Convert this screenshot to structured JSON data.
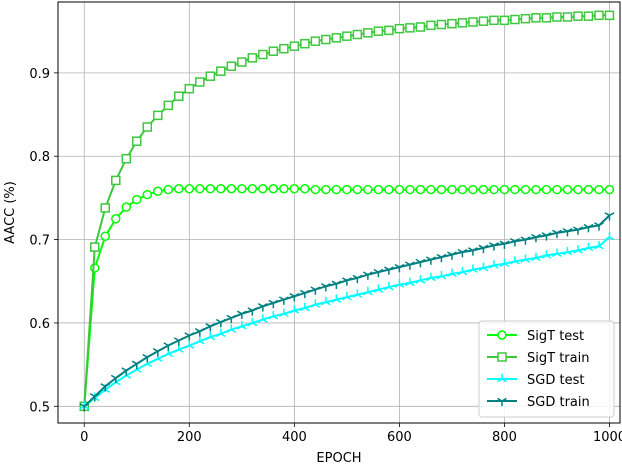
{
  "chart_data": {
    "type": "line",
    "xlabel": "EPOCH",
    "ylabel": "AACC (%)",
    "xlim": [
      -50,
      1020
    ],
    "ylim": [
      0.48,
      0.985
    ],
    "xticks": [
      0,
      200,
      400,
      600,
      800,
      1000
    ],
    "yticks": [
      0.5,
      0.6,
      0.7,
      0.8,
      0.9
    ],
    "grid": true,
    "legend_position": "lower-right",
    "series": [
      {
        "name": "SigT test",
        "color": "#00ff00",
        "marker": "circle",
        "x": [
          0,
          20,
          40,
          60,
          80,
          100,
          120,
          140,
          160,
          180,
          200,
          220,
          240,
          260,
          280,
          300,
          320,
          340,
          360,
          380,
          400,
          420,
          440,
          460,
          480,
          500,
          520,
          540,
          560,
          580,
          600,
          620,
          640,
          660,
          680,
          700,
          720,
          740,
          760,
          780,
          800,
          820,
          840,
          860,
          880,
          900,
          920,
          940,
          960,
          980,
          1000
        ],
        "y": [
          0.5,
          0.666,
          0.704,
          0.725,
          0.739,
          0.748,
          0.754,
          0.758,
          0.76,
          0.761,
          0.761,
          0.761,
          0.761,
          0.761,
          0.761,
          0.761,
          0.761,
          0.761,
          0.761,
          0.761,
          0.761,
          0.761,
          0.76,
          0.76,
          0.76,
          0.76,
          0.76,
          0.76,
          0.76,
          0.76,
          0.76,
          0.76,
          0.76,
          0.76,
          0.76,
          0.76,
          0.76,
          0.76,
          0.76,
          0.76,
          0.76,
          0.76,
          0.76,
          0.76,
          0.76,
          0.76,
          0.76,
          0.76,
          0.76,
          0.76,
          0.76
        ]
      },
      {
        "name": "SigT train",
        "color": "#3cc83c",
        "marker": "square",
        "x": [
          0,
          20,
          40,
          60,
          80,
          100,
          120,
          140,
          160,
          180,
          200,
          220,
          240,
          260,
          280,
          300,
          320,
          340,
          360,
          380,
          400,
          420,
          440,
          460,
          480,
          500,
          520,
          540,
          560,
          580,
          600,
          620,
          640,
          660,
          680,
          700,
          720,
          740,
          760,
          780,
          800,
          820,
          840,
          860,
          880,
          900,
          920,
          940,
          960,
          980,
          1000
        ],
        "y": [
          0.5,
          0.691,
          0.738,
          0.771,
          0.797,
          0.818,
          0.835,
          0.849,
          0.861,
          0.872,
          0.881,
          0.889,
          0.896,
          0.902,
          0.908,
          0.913,
          0.918,
          0.922,
          0.926,
          0.929,
          0.932,
          0.935,
          0.938,
          0.94,
          0.942,
          0.944,
          0.946,
          0.948,
          0.95,
          0.951,
          0.953,
          0.954,
          0.955,
          0.957,
          0.958,
          0.959,
          0.96,
          0.961,
          0.962,
          0.963,
          0.963,
          0.964,
          0.965,
          0.966,
          0.966,
          0.967,
          0.967,
          0.968,
          0.968,
          0.969,
          0.969
        ]
      },
      {
        "name": "SGD test",
        "color": "#00ffff",
        "marker": "tri_up",
        "x": [
          0,
          20,
          40,
          60,
          80,
          100,
          120,
          140,
          160,
          180,
          200,
          220,
          240,
          260,
          280,
          300,
          320,
          340,
          360,
          380,
          400,
          420,
          440,
          460,
          480,
          500,
          520,
          540,
          560,
          580,
          600,
          620,
          640,
          660,
          680,
          700,
          720,
          740,
          760,
          780,
          800,
          820,
          840,
          860,
          880,
          900,
          920,
          940,
          960,
          980,
          1000
        ],
        "y": [
          0.5,
          0.51,
          0.52,
          0.529,
          0.537,
          0.544,
          0.551,
          0.557,
          0.563,
          0.568,
          0.573,
          0.578,
          0.583,
          0.587,
          0.592,
          0.596,
          0.6,
          0.604,
          0.608,
          0.611,
          0.615,
          0.618,
          0.622,
          0.625,
          0.628,
          0.631,
          0.634,
          0.637,
          0.64,
          0.643,
          0.646,
          0.648,
          0.651,
          0.654,
          0.656,
          0.659,
          0.661,
          0.664,
          0.666,
          0.669,
          0.671,
          0.674,
          0.676,
          0.678,
          0.681,
          0.683,
          0.685,
          0.687,
          0.69,
          0.692,
          0.703
        ]
      },
      {
        "name": "SGD train",
        "color": "#008080",
        "marker": "tri_down",
        "x": [
          0,
          20,
          40,
          60,
          80,
          100,
          120,
          140,
          160,
          180,
          200,
          220,
          240,
          260,
          280,
          300,
          320,
          340,
          360,
          380,
          400,
          420,
          440,
          460,
          480,
          500,
          520,
          540,
          560,
          580,
          600,
          620,
          640,
          660,
          680,
          700,
          720,
          740,
          760,
          780,
          800,
          820,
          840,
          860,
          880,
          900,
          920,
          940,
          960,
          980,
          1000
        ],
        "y": [
          0.5,
          0.512,
          0.524,
          0.534,
          0.543,
          0.551,
          0.559,
          0.566,
          0.573,
          0.579,
          0.585,
          0.59,
          0.596,
          0.601,
          0.606,
          0.611,
          0.615,
          0.62,
          0.624,
          0.628,
          0.632,
          0.636,
          0.64,
          0.644,
          0.647,
          0.651,
          0.654,
          0.658,
          0.661,
          0.664,
          0.667,
          0.67,
          0.673,
          0.676,
          0.679,
          0.682,
          0.685,
          0.687,
          0.69,
          0.693,
          0.695,
          0.698,
          0.7,
          0.703,
          0.705,
          0.708,
          0.71,
          0.712,
          0.715,
          0.717,
          0.729
        ]
      }
    ]
  }
}
